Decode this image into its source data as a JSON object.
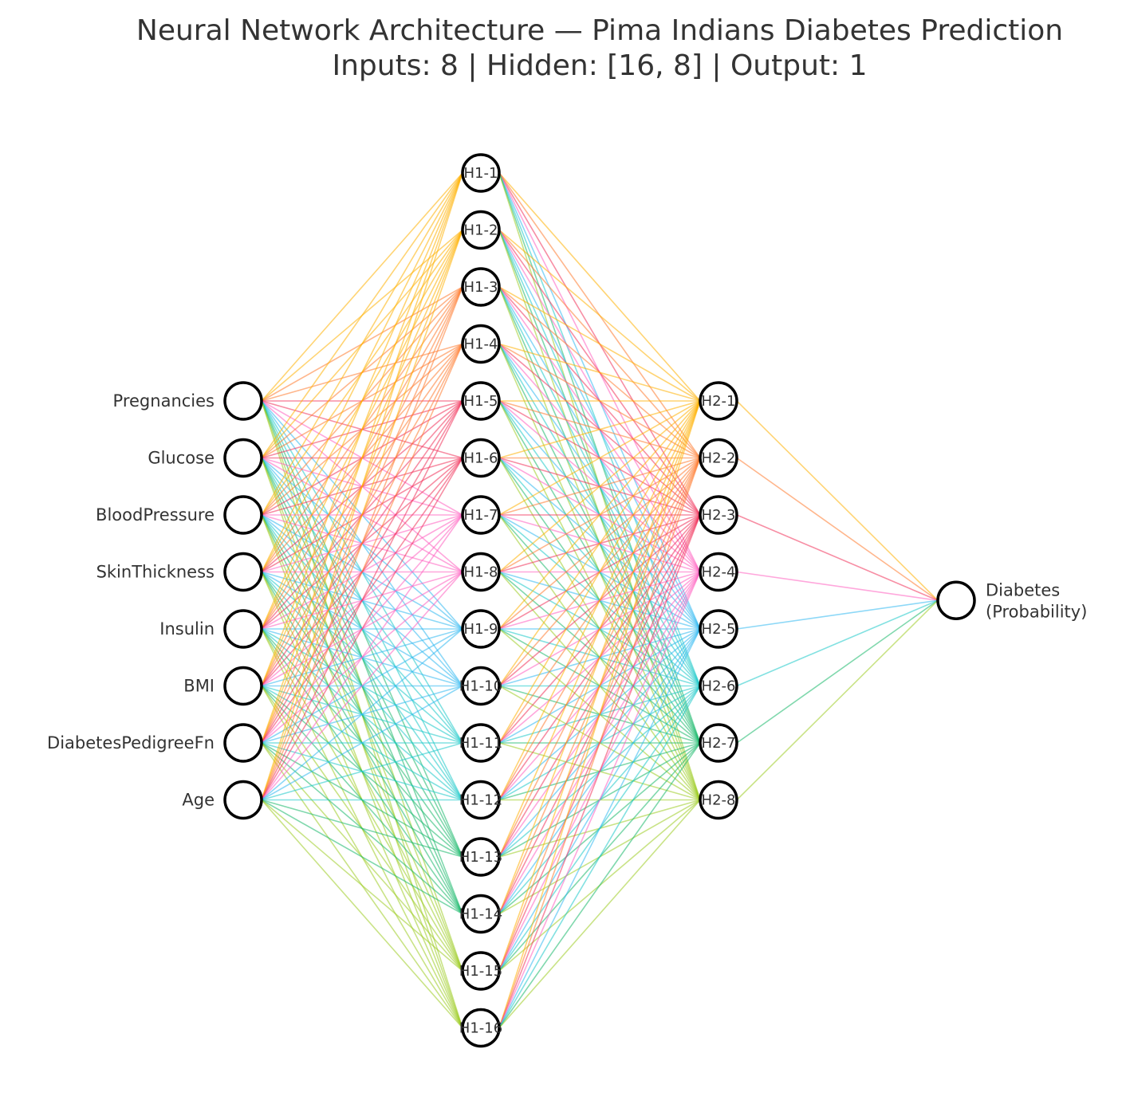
{
  "title": {
    "line1": "Neural Network Architecture — Pima Indians Diabetes Prediction",
    "line2": "Inputs: 8  |  Hidden: [16, 8]  |  Output: 1"
  },
  "layers": {
    "input": [
      "Pregnancies",
      "Glucose",
      "BloodPressure",
      "SkinThickness",
      "Insulin",
      "BMI",
      "DiabetesPedigreeFn",
      "Age"
    ],
    "hidden1": [
      "H1-1",
      "H1-2",
      "H1-3",
      "H1-4",
      "H1-5",
      "H1-6",
      "H1-7",
      "H1-8",
      "H1-9",
      "H1-10",
      "H1-11",
      "H1-12",
      "H1-13",
      "H1-14",
      "H1-15",
      "H1-16"
    ],
    "hidden2": [
      "H2-1",
      "H2-2",
      "H2-3",
      "H2-4",
      "H2-5",
      "H2-6",
      "H2-7",
      "H2-8"
    ],
    "output": [
      "Diabetes",
      "(Probability)"
    ]
  },
  "connections": "fully-connected",
  "edge_palette": [
    "#ffb000",
    "#ff7a2e",
    "#f0325a",
    "#ff5fbf",
    "#30b8f0",
    "#1cc8c8",
    "#18b86a",
    "#9ccc22"
  ],
  "node_style": {
    "fill": "#ffffff",
    "stroke": "#000000"
  }
}
